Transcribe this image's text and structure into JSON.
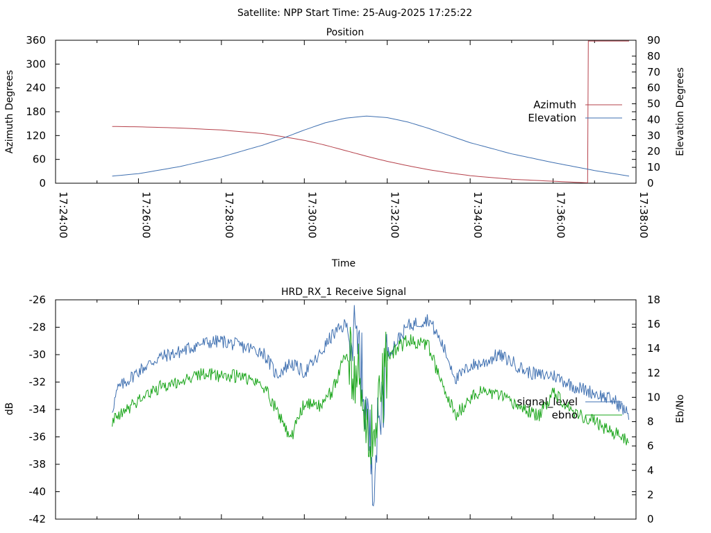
{
  "figure": {
    "suptitle": "Satellite: NPP    Start Time: 25-Aug-2025 17:25:22"
  },
  "chart_data": [
    {
      "type": "line",
      "title": "Position",
      "xlabel": "Time",
      "ylabel": "Azimuth Degrees",
      "y2label": "Elevation Degrees",
      "xlim": [
        "17:24:00",
        "17:38:00"
      ],
      "xticks": [
        "17:24:00",
        "17:26:00",
        "17:28:00",
        "17:30:00",
        "17:32:00",
        "17:34:00",
        "17:36:00",
        "17:38:00"
      ],
      "ylim": [
        0,
        360
      ],
      "yticks": [
        0,
        60,
        120,
        180,
        240,
        300,
        360
      ],
      "y2lim": [
        0,
        90
      ],
      "y2ticks": [
        0,
        10,
        20,
        30,
        40,
        50,
        60,
        70,
        80,
        90
      ],
      "legend": "right",
      "series": [
        {
          "name": "Azimuth",
          "axis": "y",
          "color": "#b5404a",
          "points": [
            [
              "17:25:22",
              143
            ],
            [
              "17:26:00",
              142
            ],
            [
              "17:27:00",
              139
            ],
            [
              "17:28:00",
              134
            ],
            [
              "17:29:00",
              125
            ],
            [
              "17:29:30",
              117
            ],
            [
              "17:30:00",
              108
            ],
            [
              "17:30:30",
              96
            ],
            [
              "17:31:00",
              82
            ],
            [
              "17:31:30",
              68
            ],
            [
              "17:32:00",
              55
            ],
            [
              "17:32:30",
              44
            ],
            [
              "17:33:00",
              34
            ],
            [
              "17:33:30",
              26
            ],
            [
              "17:34:00",
              19
            ],
            [
              "17:35:00",
              10
            ],
            [
              "17:36:00",
              5
            ],
            [
              "17:36:50",
              1
            ],
            [
              "17:36:51",
              358
            ],
            [
              "17:37:50",
              358
            ]
          ]
        },
        {
          "name": "Elevation",
          "axis": "y2",
          "color": "#3e6fb0",
          "points": [
            [
              "17:25:22",
              4.5
            ],
            [
              "17:26:00",
              6
            ],
            [
              "17:27:00",
              10.5
            ],
            [
              "17:28:00",
              16.5
            ],
            [
              "17:29:00",
              24
            ],
            [
              "17:29:30",
              28.5
            ],
            [
              "17:30:00",
              33.5
            ],
            [
              "17:30:30",
              38
            ],
            [
              "17:31:00",
              41
            ],
            [
              "17:31:30",
              42.3
            ],
            [
              "17:32:00",
              41.3
            ],
            [
              "17:32:30",
              38.5
            ],
            [
              "17:33:00",
              34.5
            ],
            [
              "17:33:30",
              30
            ],
            [
              "17:34:00",
              25.5
            ],
            [
              "17:35:00",
              18.5
            ],
            [
              "17:36:00",
              13
            ],
            [
              "17:37:00",
              8
            ],
            [
              "17:37:50",
              4.5
            ]
          ]
        }
      ]
    },
    {
      "type": "line",
      "title": "HRD_RX_1 Receive Signal",
      "ylabel": "dB",
      "y2label": "Eb/No",
      "xlim": [
        "17:24:00",
        "17:38:00"
      ],
      "ylim": [
        -42,
        -26
      ],
      "yticks": [
        -42,
        -40,
        -38,
        -36,
        -34,
        -32,
        -30,
        -28,
        -26
      ],
      "y2lim": [
        0,
        18
      ],
      "y2ticks": [
        0,
        2,
        4,
        6,
        8,
        10,
        12,
        14,
        16,
        18
      ],
      "legend": "right",
      "noise_amplitude": 0.5,
      "series": [
        {
          "name": "signal_level",
          "axis": "y",
          "color": "#3e6fb0",
          "points": [
            [
              "17:25:22",
              -34.0
            ],
            [
              "17:25:30",
              -32.5
            ],
            [
              "17:26:00",
              -31.2
            ],
            [
              "17:26:30",
              -30.2
            ],
            [
              "17:27:00",
              -29.8
            ],
            [
              "17:27:30",
              -29.2
            ],
            [
              "17:28:00",
              -29.0
            ],
            [
              "17:28:30",
              -29.4
            ],
            [
              "17:29:00",
              -29.8
            ],
            [
              "17:29:20",
              -31.5
            ],
            [
              "17:29:40",
              -30.6
            ],
            [
              "17:30:00",
              -31.3
            ],
            [
              "17:30:20",
              -30.2
            ],
            [
              "17:30:40",
              -28.6
            ],
            [
              "17:31:00",
              -27.8
            ],
            [
              "17:31:20",
              -30.0
            ],
            [
              "17:31:40",
              -38.5
            ],
            [
              "17:32:00",
              -30.0
            ],
            [
              "17:32:30",
              -27.9
            ],
            [
              "17:33:00",
              -27.4
            ],
            [
              "17:33:20",
              -29.3
            ],
            [
              "17:33:40",
              -31.8
            ],
            [
              "17:34:00",
              -30.8
            ],
            [
              "17:34:20",
              -30.6
            ],
            [
              "17:34:40",
              -30.0
            ],
            [
              "17:35:00",
              -30.5
            ],
            [
              "17:35:20",
              -31.2
            ],
            [
              "17:35:40",
              -31.5
            ],
            [
              "17:36:00",
              -31.5
            ],
            [
              "17:36:30",
              -32.3
            ],
            [
              "17:37:00",
              -32.8
            ],
            [
              "17:37:30",
              -33.4
            ],
            [
              "17:37:50",
              -34.4
            ]
          ]
        },
        {
          "name": "ebno",
          "axis": "y2",
          "color": "#1aa51a",
          "points": [
            [
              "17:25:22",
              8.0
            ],
            [
              "17:25:30",
              8.3
            ],
            [
              "17:26:00",
              9.8
            ],
            [
              "17:26:30",
              10.8
            ],
            [
              "17:27:00",
              11.3
            ],
            [
              "17:27:30",
              11.9
            ],
            [
              "17:28:00",
              11.8
            ],
            [
              "17:28:30",
              11.7
            ],
            [
              "17:29:00",
              11.0
            ],
            [
              "17:29:20",
              9.0
            ],
            [
              "17:29:40",
              6.6
            ],
            [
              "17:30:00",
              9.5
            ],
            [
              "17:30:20",
              9.2
            ],
            [
              "17:30:40",
              10.5
            ],
            [
              "17:31:00",
              13.5
            ],
            [
              "17:31:20",
              11.0
            ],
            [
              "17:31:40",
              6.0
            ],
            [
              "17:32:00",
              13.3
            ],
            [
              "17:32:30",
              14.7
            ],
            [
              "17:33:00",
              14.2
            ],
            [
              "17:33:20",
              10.8
            ],
            [
              "17:33:40",
              8.5
            ],
            [
              "17:34:00",
              10.0
            ],
            [
              "17:34:20",
              10.5
            ],
            [
              "17:34:40",
              10.2
            ],
            [
              "17:35:00",
              9.5
            ],
            [
              "17:35:20",
              9.0
            ],
            [
              "17:35:40",
              8.4
            ],
            [
              "17:36:00",
              10.5
            ],
            [
              "17:36:30",
              8.8
            ],
            [
              "17:37:00",
              8.0
            ],
            [
              "17:37:30",
              7.0
            ],
            [
              "17:37:50",
              6.4
            ]
          ]
        }
      ]
    }
  ]
}
